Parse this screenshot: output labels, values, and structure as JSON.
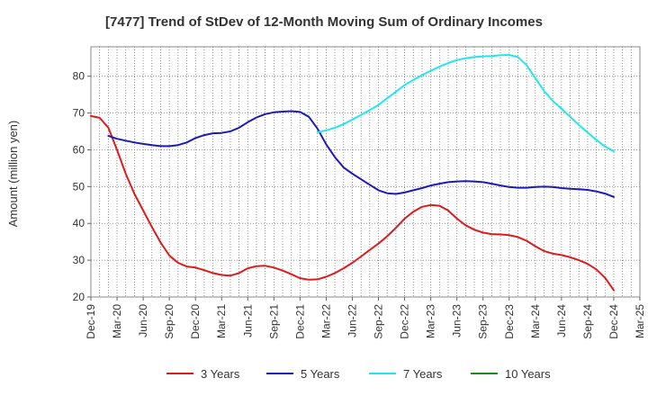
{
  "chart_data": {
    "type": "line",
    "title": "[7477]  Trend of StDev of 12-Month Moving Sum of Ordinary Incomes",
    "xlabel": "",
    "ylabel": "Amount (million yen)",
    "ylim": [
      20,
      88
    ],
    "yticks": [
      20,
      30,
      40,
      50,
      60,
      70,
      80
    ],
    "xlim": [
      "Dec-19",
      "Mar-25"
    ],
    "xticks": [
      "Dec-19",
      "Mar-20",
      "Jun-20",
      "Sep-20",
      "Dec-20",
      "Mar-21",
      "Jun-21",
      "Sep-21",
      "Dec-21",
      "Mar-22",
      "Jun-22",
      "Sep-22",
      "Dec-22",
      "Mar-23",
      "Jun-23",
      "Sep-23",
      "Dec-23",
      "Mar-24",
      "Jun-24",
      "Sep-24",
      "Dec-24",
      "Mar-25"
    ],
    "grid": true,
    "legend_position": "bottom",
    "series": [
      {
        "name": "3 Years",
        "color": "#dd1b1b",
        "x": [
          "Dec-19",
          "Jan-20",
          "Feb-20",
          "Mar-20",
          "Apr-20",
          "May-20",
          "Jun-20",
          "Jul-20",
          "Aug-20",
          "Sep-20",
          "Oct-20",
          "Nov-20",
          "Dec-20",
          "Jan-21",
          "Feb-21",
          "Mar-21",
          "Apr-21",
          "May-21",
          "Jun-21",
          "Jul-21",
          "Aug-21",
          "Sep-21",
          "Oct-21",
          "Nov-21",
          "Dec-21",
          "Jan-22",
          "Feb-22",
          "Mar-22",
          "Apr-22",
          "May-22",
          "Jun-22",
          "Jul-22",
          "Aug-22",
          "Sep-22",
          "Oct-22",
          "Nov-22",
          "Dec-22",
          "Jan-23",
          "Feb-23",
          "Mar-23",
          "Apr-23",
          "May-23",
          "Jun-23",
          "Jul-23",
          "Aug-23",
          "Sep-23",
          "Oct-23",
          "Nov-23",
          "Dec-23",
          "Jan-24",
          "Feb-24",
          "Mar-24",
          "Apr-24",
          "May-24",
          "Jun-24",
          "Jul-24",
          "Aug-24",
          "Sep-24",
          "Oct-24",
          "Nov-24",
          "Dec-24"
        ],
        "values": [
          69.2,
          68.7,
          66.0,
          60.0,
          53.5,
          48.0,
          43.5,
          39.0,
          34.8,
          31.3,
          29.3,
          28.3,
          28.0,
          27.3,
          26.5,
          26.0,
          25.8,
          26.5,
          27.8,
          28.4,
          28.5,
          28.0,
          27.2,
          26.2,
          25.1,
          24.7,
          24.8,
          25.5,
          26.5,
          27.8,
          29.3,
          31.0,
          32.8,
          34.5,
          36.5,
          38.8,
          41.3,
          43.2,
          44.5,
          45.0,
          44.8,
          43.5,
          41.3,
          39.5,
          38.3,
          37.5,
          37.1,
          37.0,
          36.8,
          36.3,
          35.3,
          33.8,
          32.5,
          31.8,
          31.4,
          30.8,
          30.0,
          29.0,
          27.5,
          25.2,
          21.8
        ]
      },
      {
        "name": "5 Years",
        "color": "#1b1bbb",
        "x": [
          "Feb-20",
          "Mar-20",
          "Apr-20",
          "May-20",
          "Jun-20",
          "Jul-20",
          "Aug-20",
          "Sep-20",
          "Oct-20",
          "Nov-20",
          "Dec-20",
          "Jan-21",
          "Feb-21",
          "Mar-21",
          "Apr-21",
          "May-21",
          "Jun-21",
          "Jul-21",
          "Aug-21",
          "Sep-21",
          "Oct-21",
          "Nov-21",
          "Dec-21",
          "Jan-22",
          "Feb-22",
          "Mar-22",
          "Apr-22",
          "May-22",
          "Jun-22",
          "Jul-22",
          "Aug-22",
          "Sep-22",
          "Oct-22",
          "Nov-22",
          "Dec-22",
          "Jan-23",
          "Feb-23",
          "Mar-23",
          "Apr-23",
          "May-23",
          "Jun-23",
          "Jul-23",
          "Aug-23",
          "Sep-23",
          "Oct-23",
          "Nov-23",
          "Dec-23",
          "Jan-24",
          "Feb-24",
          "Mar-24",
          "Apr-24",
          "May-24",
          "Jun-24",
          "Jul-24",
          "Aug-24",
          "Sep-24",
          "Oct-24",
          "Nov-24",
          "Dec-24"
        ],
        "values": [
          63.8,
          63.0,
          62.5,
          62.0,
          61.6,
          61.3,
          61.0,
          61.0,
          61.3,
          62.0,
          63.2,
          64.0,
          64.5,
          64.6,
          65.0,
          66.0,
          67.5,
          68.8,
          69.7,
          70.2,
          70.4,
          70.5,
          70.3,
          69.0,
          65.8,
          61.5,
          58.0,
          55.2,
          53.5,
          52.0,
          50.5,
          49.0,
          48.2,
          48.0,
          48.4,
          49.0,
          49.6,
          50.3,
          50.8,
          51.2,
          51.4,
          51.5,
          51.4,
          51.2,
          50.8,
          50.3,
          49.9,
          49.7,
          49.7,
          49.9,
          50.0,
          49.9,
          49.6,
          49.4,
          49.3,
          49.1,
          48.7,
          48.1,
          47.2
        ]
      },
      {
        "name": "7 Years",
        "color": "#22e6ee",
        "x": [
          "Feb-22",
          "Mar-22",
          "Apr-22",
          "May-22",
          "Jun-22",
          "Jul-22",
          "Aug-22",
          "Sep-22",
          "Oct-22",
          "Nov-22",
          "Dec-22",
          "Jan-23",
          "Feb-23",
          "Mar-23",
          "Apr-23",
          "May-23",
          "Jun-23",
          "Jul-23",
          "Aug-23",
          "Sep-23",
          "Oct-23",
          "Nov-23",
          "Dec-23",
          "Jan-24",
          "Feb-24",
          "Mar-24",
          "Apr-24",
          "May-24",
          "Jun-24",
          "Jul-24",
          "Aug-24",
          "Sep-24",
          "Oct-24",
          "Nov-24",
          "Dec-24"
        ],
        "values": [
          64.8,
          65.3,
          66.0,
          67.0,
          68.2,
          69.5,
          70.8,
          72.2,
          74.0,
          75.8,
          77.6,
          79.0,
          80.3,
          81.5,
          82.6,
          83.6,
          84.4,
          84.9,
          85.2,
          85.4,
          85.5,
          85.7,
          85.8,
          85.2,
          83.0,
          79.5,
          76.0,
          73.3,
          71.2,
          69.0,
          66.8,
          64.7,
          62.7,
          60.9,
          59.6
        ]
      },
      {
        "name": "10 Years",
        "color": "#1e8b1e",
        "x": [],
        "values": []
      }
    ]
  }
}
